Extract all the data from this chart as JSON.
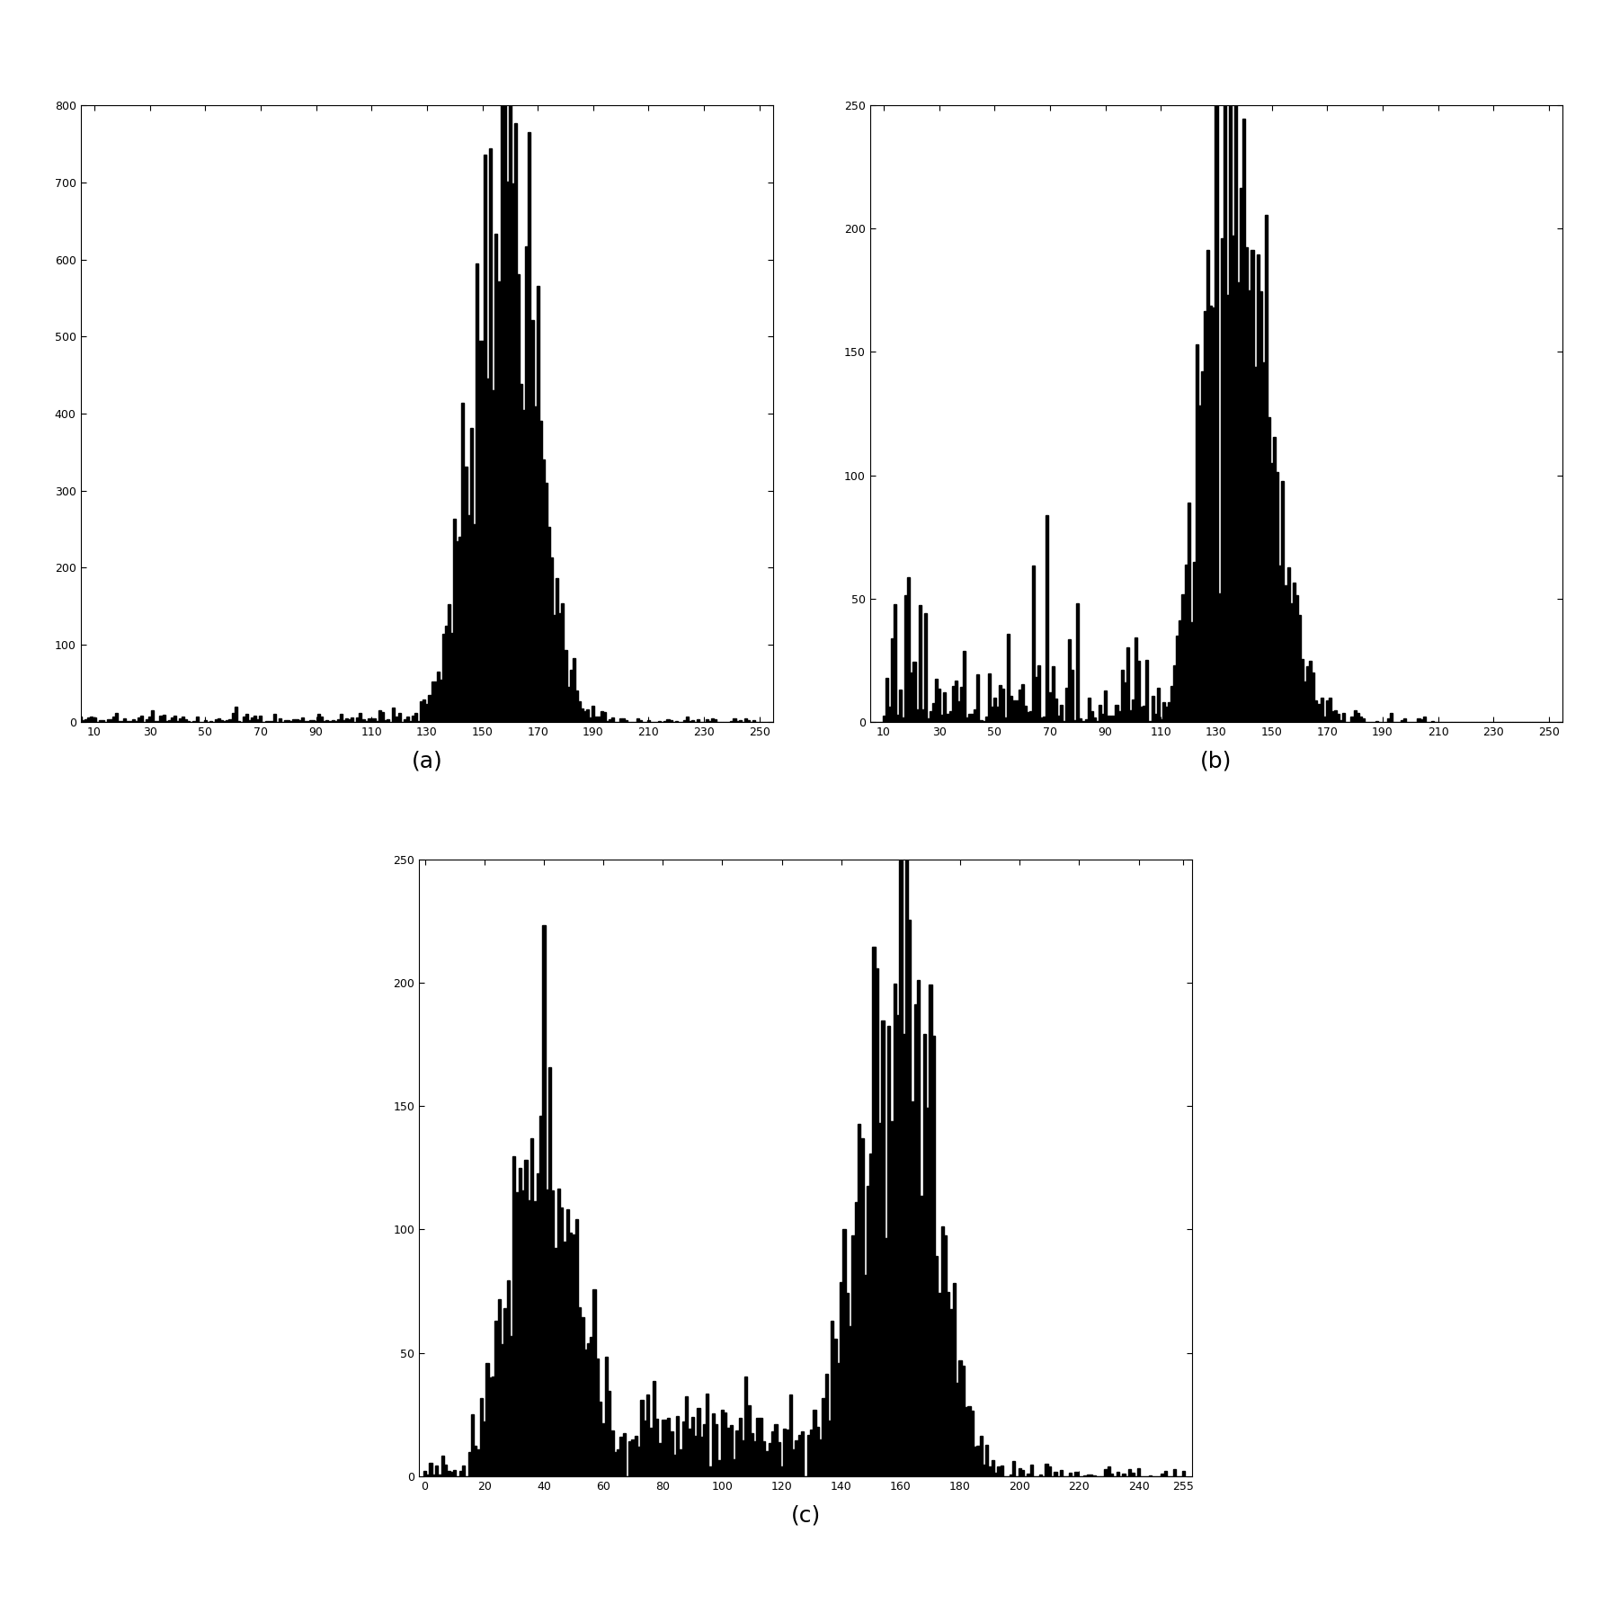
{
  "plot_a": {
    "xlabel_ticks": [
      10,
      30,
      50,
      70,
      90,
      110,
      130,
      150,
      170,
      190,
      210,
      230,
      250
    ],
    "ylim": [
      0,
      800
    ],
    "yticks": [
      0,
      100,
      200,
      300,
      400,
      500,
      600,
      700,
      800
    ],
    "xlim": [
      5,
      255
    ],
    "label": "(a)"
  },
  "plot_b": {
    "xlabel_ticks": [
      10,
      30,
      50,
      70,
      90,
      110,
      130,
      150,
      170,
      190,
      210,
      230,
      250
    ],
    "ylim": [
      0,
      250
    ],
    "yticks": [
      0,
      50,
      100,
      150,
      200,
      250
    ],
    "xlim": [
      5,
      255
    ],
    "label": "(b)"
  },
  "plot_c": {
    "xlabel_ticks": [
      0,
      20,
      40,
      60,
      80,
      100,
      120,
      140,
      160,
      180,
      200,
      220,
      240,
      255
    ],
    "ylim": [
      0,
      250
    ],
    "yticks": [
      0,
      50,
      100,
      150,
      200,
      250
    ],
    "xlim": [
      -2,
      258
    ],
    "label": "(c)"
  },
  "bar_color": "#000000",
  "label_fontsize": 18,
  "tick_fontsize": 9
}
